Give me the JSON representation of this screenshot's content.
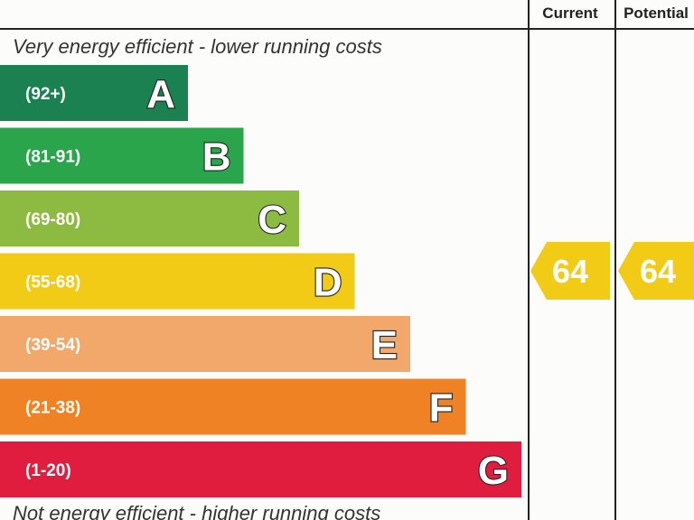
{
  "header": {
    "current_label": "Current",
    "potential_label": "Potential"
  },
  "captions": {
    "top": "Very energy efficient - lower running costs",
    "bottom": "Not energy efficient - higher running costs"
  },
  "colors": {
    "A": "#1b8150",
    "B": "#2ba54c",
    "C": "#8dbb42",
    "D": "#f2cb17",
    "E": "#f2a86a",
    "F": "#ee8224",
    "G": "#e11d3f",
    "rating_arrow": "#f2cb17",
    "grid_line": "#222222"
  },
  "chart_data": {
    "type": "bar",
    "categories": [
      "A",
      "B",
      "C",
      "D",
      "E",
      "F",
      "G"
    ],
    "ranges": [
      "(92+)",
      "(81-91)",
      "(69-80)",
      "(55-68)",
      "(39-54)",
      "(21-38)",
      "(1-20)"
    ],
    "current_rating": 64,
    "current_band": "D",
    "potential_rating": 64,
    "potential_band": "D"
  }
}
